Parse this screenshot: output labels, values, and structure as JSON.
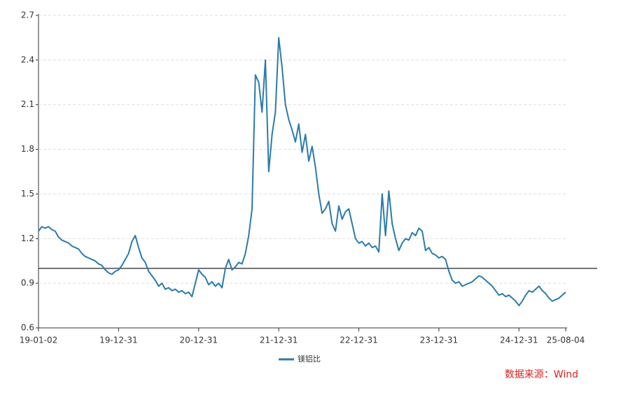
{
  "chart_data": {
    "type": "line",
    "categories": [
      "19-01-02",
      null,
      null,
      null,
      null,
      null,
      null,
      null,
      null,
      null,
      null,
      null,
      null,
      null,
      null,
      null,
      null,
      null,
      null,
      null,
      null,
      null,
      null,
      null,
      "19-12-31",
      null,
      null,
      null,
      null,
      null,
      null,
      null,
      null,
      null,
      null,
      null,
      null,
      null,
      null,
      null,
      null,
      null,
      null,
      null,
      null,
      null,
      null,
      null,
      "20-12-31",
      null,
      null,
      null,
      null,
      null,
      null,
      null,
      null,
      null,
      null,
      null,
      null,
      null,
      null,
      null,
      null,
      null,
      null,
      null,
      null,
      null,
      null,
      null,
      "21-12-31",
      null,
      null,
      null,
      null,
      null,
      null,
      null,
      null,
      null,
      null,
      null,
      null,
      null,
      null,
      null,
      null,
      null,
      null,
      null,
      null,
      null,
      null,
      null,
      "22-12-31",
      null,
      null,
      null,
      null,
      null,
      null,
      null,
      null,
      null,
      null,
      null,
      null,
      null,
      null,
      null,
      null,
      null,
      null,
      null,
      null,
      null,
      null,
      null,
      "23-12-31",
      null,
      null,
      null,
      null,
      null,
      null,
      null,
      null,
      null,
      null,
      null,
      null,
      null,
      null,
      null,
      null,
      null,
      null,
      null,
      null,
      null,
      null,
      null,
      "24-12-31",
      null,
      null,
      null,
      null,
      null,
      null,
      null,
      null,
      null,
      null,
      null,
      null,
      null,
      "25-08-04"
    ],
    "series": [
      {
        "name": "镁铝比",
        "color": "#2b7bab",
        "values": [
          1.25,
          1.28,
          1.27,
          1.28,
          1.26,
          1.25,
          1.21,
          1.19,
          1.18,
          1.17,
          1.15,
          1.14,
          1.13,
          1.1,
          1.08,
          1.07,
          1.06,
          1.05,
          1.03,
          1.02,
          0.99,
          0.97,
          0.96,
          0.98,
          0.99,
          1.02,
          1.06,
          1.1,
          1.18,
          1.22,
          1.14,
          1.07,
          1.04,
          0.98,
          0.95,
          0.92,
          0.88,
          0.9,
          0.86,
          0.87,
          0.85,
          0.86,
          0.84,
          0.85,
          0.83,
          0.84,
          0.81,
          0.9,
          0.99,
          0.96,
          0.94,
          0.89,
          0.91,
          0.88,
          0.9,
          0.87,
          1.0,
          1.06,
          0.99,
          1.01,
          1.04,
          1.03,
          1.1,
          1.22,
          1.4,
          2.3,
          2.25,
          2.05,
          2.4,
          1.65,
          1.9,
          2.05,
          2.55,
          2.35,
          2.1,
          2.0,
          1.93,
          1.85,
          1.97,
          1.78,
          1.9,
          1.72,
          1.82,
          1.68,
          1.5,
          1.37,
          1.4,
          1.45,
          1.3,
          1.25,
          1.42,
          1.33,
          1.38,
          1.4,
          1.3,
          1.2,
          1.17,
          1.18,
          1.15,
          1.17,
          1.14,
          1.15,
          1.11,
          1.5,
          1.22,
          1.52,
          1.3,
          1.2,
          1.12,
          1.17,
          1.2,
          1.19,
          1.24,
          1.22,
          1.27,
          1.25,
          1.12,
          1.14,
          1.1,
          1.09,
          1.07,
          1.08,
          1.06,
          0.98,
          0.92,
          0.9,
          0.91,
          0.88,
          0.89,
          0.9,
          0.91,
          0.93,
          0.95,
          0.94,
          0.92,
          0.9,
          0.88,
          0.85,
          0.82,
          0.83,
          0.81,
          0.82,
          0.8,
          0.78,
          0.75,
          0.78,
          0.82,
          0.85,
          0.84,
          0.86,
          0.88,
          0.85,
          0.83,
          0.8,
          0.78,
          0.79,
          0.8,
          0.82,
          0.84
        ]
      }
    ],
    "ylim": [
      0.6,
      2.7
    ],
    "yticks": [
      0.6,
      0.9,
      1.2,
      1.5,
      1.8,
      2.1,
      2.4,
      2.7
    ],
    "grid": true,
    "hline": 1,
    "legend": "bottom",
    "source": "数据来源：Wind"
  }
}
